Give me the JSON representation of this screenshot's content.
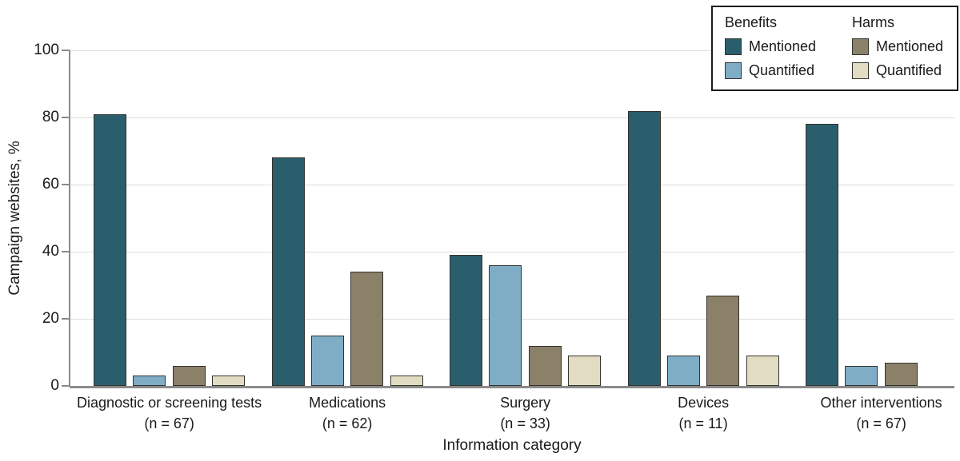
{
  "chart_data": {
    "type": "bar",
    "title": "",
    "xlabel": "Information category",
    "ylabel": "Campaign websites, %",
    "ylim": [
      0,
      100
    ],
    "yticks": [
      0,
      20,
      40,
      60,
      80,
      100
    ],
    "grid": "horizontal",
    "legend_position": "top-right",
    "axis_color": "#8a8a8a",
    "grid_color": "#dedede",
    "categories": [
      {
        "label": "Diagnostic or screening tests",
        "n_label": "(n = 67)"
      },
      {
        "label": "Medications",
        "n_label": "(n = 62)"
      },
      {
        "label": "Surgery",
        "n_label": "(n = 33)"
      },
      {
        "label": "Devices",
        "n_label": "(n = 11)"
      },
      {
        "label": "Other interventions",
        "n_label": "(n = 67)"
      }
    ],
    "series": [
      {
        "name": "Benefits Mentioned",
        "group": "Benefits",
        "label": "Mentioned",
        "color": "#2a5e6c",
        "values": [
          81,
          68,
          39,
          82,
          78
        ]
      },
      {
        "name": "Benefits Quantified",
        "group": "Benefits",
        "label": "Quantified",
        "color": "#7fadc6",
        "values": [
          3,
          15,
          36,
          9,
          6
        ]
      },
      {
        "name": "Harms Mentioned",
        "group": "Harms",
        "label": "Mentioned",
        "color": "#8b8068",
        "values": [
          6,
          34,
          12,
          27,
          7
        ]
      },
      {
        "name": "Harms Quantified",
        "group": "Harms",
        "label": "Quantified",
        "color": "#e1dcc2",
        "values": [
          3,
          3,
          9,
          9,
          0
        ]
      }
    ],
    "legend": {
      "benefits_header": "Benefits",
      "harms_header": "Harms",
      "benefits_mentioned": "Mentioned",
      "benefits_quantified": "Quantified",
      "harms_mentioned": "Mentioned",
      "harms_quantified": "Quantified"
    }
  }
}
